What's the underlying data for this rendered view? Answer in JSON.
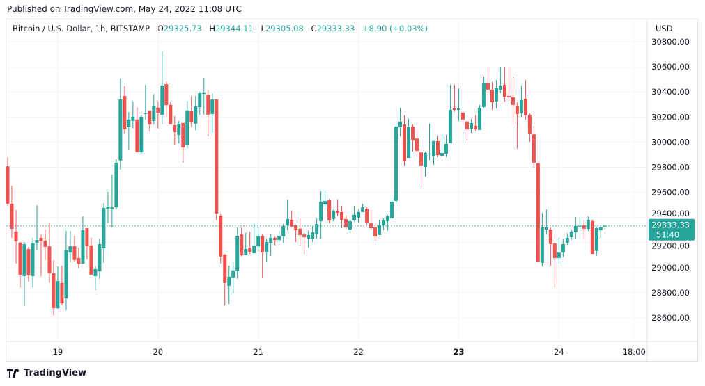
{
  "published": "Published on TradingView.com, May 24, 2022 11:08 UTC",
  "legend": {
    "symbol": "Bitcoin / U.S. Dollar, 1h, BITSTAMP",
    "o_label": "O",
    "o": "29325.73",
    "h_label": "H",
    "h": "29344.11",
    "l_label": "L",
    "l": "29305.08",
    "c_label": "C",
    "c": "29333.33",
    "change": "+8.90 (+0.03%)"
  },
  "currency": "USD",
  "logo_text": "TradingView",
  "colors": {
    "up": "#26a69a",
    "down": "#ef5350",
    "grid": "#f0f3fa",
    "axis_text": "#131722"
  },
  "chart_data": {
    "type": "candlestick",
    "interval": "1h",
    "ylim": [
      28520,
      30880
    ],
    "grid": true,
    "y_ticks": [
      "30800.00",
      "30600.00",
      "30400.00",
      "30200.00",
      "30000.00",
      "29800.00",
      "29600.00",
      "29400.00",
      "29200.00",
      "29000.00",
      "28800.00",
      "28600.00"
    ],
    "x_ticks": [
      {
        "label": "19",
        "bold": false
      },
      {
        "label": "20",
        "bold": false
      },
      {
        "label": "21",
        "bold": false
      },
      {
        "label": "22",
        "bold": false
      },
      {
        "label": "23",
        "bold": true
      },
      {
        "label": "24",
        "bold": false
      },
      {
        "label": "18:00",
        "bold": false
      }
    ],
    "last_price": {
      "value": "29333.33",
      "countdown": "51:40"
    },
    "ohlc": [
      [
        29808,
        29880,
        29493,
        29509
      ],
      [
        29509,
        29653,
        29238,
        29310
      ],
      [
        29288,
        29459,
        29033,
        29210
      ],
      [
        29199,
        29205,
        28844,
        28944
      ],
      [
        28933,
        29205,
        28695,
        29188
      ],
      [
        29149,
        29166,
        28889,
        28939
      ],
      [
        28933,
        29238,
        28844,
        29194
      ],
      [
        29199,
        29498,
        29138,
        29221
      ],
      [
        29238,
        29265,
        28933,
        29210
      ],
      [
        29216,
        29304,
        29061,
        29166
      ],
      [
        29171,
        29360,
        28878,
        28955
      ],
      [
        28955,
        29061,
        28622,
        28678
      ],
      [
        28678,
        29011,
        28672,
        28894
      ],
      [
        28878,
        29016,
        28700,
        28717
      ],
      [
        28755,
        29293,
        28661,
        29138
      ],
      [
        29121,
        29293,
        29044,
        29171
      ],
      [
        29171,
        29254,
        29050,
        29061
      ],
      [
        29077,
        29160,
        28994,
        29033
      ],
      [
        29033,
        29409,
        29033,
        29299
      ],
      [
        29315,
        29315,
        29066,
        29171
      ],
      [
        29177,
        29238,
        28944,
        28944
      ],
      [
        28933,
        29016,
        28822,
        28989
      ],
      [
        28972,
        29232,
        28911,
        29188
      ],
      [
        29155,
        29515,
        29039,
        29476
      ],
      [
        29470,
        29603,
        29354,
        29487
      ],
      [
        29465,
        29742,
        29321,
        29481
      ],
      [
        29481,
        29864,
        29470,
        29836
      ],
      [
        29853,
        30506,
        29781,
        30340
      ],
      [
        30368,
        30445,
        30069,
        30102
      ],
      [
        30119,
        30240,
        29936,
        30180
      ],
      [
        30169,
        30324,
        30110,
        30202
      ],
      [
        30180,
        30279,
        29919,
        29919
      ],
      [
        29919,
        30218,
        29910,
        30202
      ],
      [
        30224,
        30456,
        30180,
        30230
      ],
      [
        30252,
        30252,
        30085,
        30141
      ],
      [
        30169,
        30384,
        30141,
        30290
      ],
      [
        30274,
        30324,
        30108,
        30235
      ],
      [
        30218,
        30722,
        30141,
        30451
      ],
      [
        30462,
        30484,
        30202,
        30296
      ],
      [
        30296,
        30318,
        30141,
        30141
      ],
      [
        30135,
        30207,
        29980,
        30080
      ],
      [
        30058,
        30169,
        29990,
        30146
      ],
      [
        30152,
        30152,
        29836,
        29958
      ],
      [
        29980,
        30329,
        29950,
        30252
      ],
      [
        30246,
        30368,
        30124,
        30157
      ],
      [
        30146,
        30368,
        30095,
        30285
      ],
      [
        30279,
        30401,
        30218,
        30390
      ],
      [
        30384,
        30512,
        30218,
        30396
      ],
      [
        30379,
        30418,
        30047,
        30218
      ],
      [
        30224,
        30390,
        30075,
        30340
      ],
      [
        30340,
        30340,
        29377,
        29432
      ],
      [
        29415,
        29432,
        29033,
        29089
      ],
      [
        29105,
        29110,
        28700,
        28878
      ],
      [
        28856,
        29016,
        28711,
        28928
      ],
      [
        28922,
        29050,
        28794,
        28978
      ],
      [
        28972,
        29321,
        28911,
        29254
      ],
      [
        29265,
        29321,
        29090,
        29099
      ],
      [
        29099,
        29277,
        29099,
        29149
      ],
      [
        29160,
        29288,
        29110,
        29127
      ],
      [
        29116,
        29354,
        29116,
        29177
      ],
      [
        29171,
        29321,
        29127,
        29254
      ],
      [
        29254,
        29271,
        28916,
        29121
      ],
      [
        29121,
        29232,
        29050,
        29205
      ],
      [
        29199,
        29271,
        29094,
        29238
      ],
      [
        29238,
        29249,
        29177,
        29221
      ],
      [
        29221,
        29293,
        29199,
        29254
      ],
      [
        29249,
        29349,
        29199,
        29332
      ],
      [
        29338,
        29543,
        29300,
        29388
      ],
      [
        29382,
        29454,
        29321,
        29327
      ],
      [
        29338,
        29343,
        29205,
        29299
      ],
      [
        29310,
        29393,
        29177,
        29260
      ],
      [
        29265,
        29276,
        29110,
        29243
      ],
      [
        29232,
        29299,
        29160,
        29260
      ],
      [
        29232,
        29332,
        29205,
        29282
      ],
      [
        29265,
        29393,
        29232,
        29349
      ],
      [
        29371,
        29609,
        29232,
        29526
      ],
      [
        29504,
        29620,
        29465,
        29532
      ],
      [
        29537,
        29548,
        29354,
        29377
      ],
      [
        29388,
        29465,
        29370,
        29454
      ],
      [
        29454,
        29543,
        29410,
        29437
      ],
      [
        29443,
        29493,
        29315,
        29382
      ],
      [
        29388,
        29420,
        29310,
        29321
      ],
      [
        29304,
        29382,
        29277,
        29371
      ],
      [
        29377,
        29493,
        29366,
        29421
      ],
      [
        29399,
        29465,
        29360,
        29443
      ],
      [
        29443,
        29509,
        29443,
        29481
      ],
      [
        29470,
        29481,
        29340,
        29360
      ],
      [
        29354,
        29459,
        29300,
        29315
      ],
      [
        29321,
        29350,
        29210,
        29249
      ],
      [
        29260,
        29382,
        29260,
        29338
      ],
      [
        29338,
        29393,
        29300,
        29377
      ],
      [
        29371,
        29421,
        29296,
        29410
      ],
      [
        29393,
        29559,
        29393,
        29526
      ],
      [
        29532,
        30152,
        29505,
        30124
      ],
      [
        30119,
        30274,
        30047,
        30163
      ],
      [
        30141,
        30213,
        29814,
        29847
      ],
      [
        29875,
        30185,
        29875,
        30124
      ],
      [
        30124,
        30140,
        29925,
        30013
      ],
      [
        30030,
        30113,
        29886,
        29930
      ],
      [
        29919,
        29947,
        29642,
        29814
      ],
      [
        29803,
        29925,
        29725,
        29914
      ],
      [
        29903,
        30146,
        29858,
        29908
      ],
      [
        29886,
        30013,
        29819,
        30008
      ],
      [
        30008,
        30052,
        29880,
        29897
      ],
      [
        29892,
        30063,
        29880,
        29914
      ],
      [
        29908,
        30058,
        29880,
        29986
      ],
      [
        29991,
        30456,
        29991,
        30257
      ],
      [
        30268,
        30456,
        30240,
        30257
      ],
      [
        30257,
        30429,
        30169,
        30268
      ],
      [
        30235,
        30246,
        30135,
        30180
      ],
      [
        30163,
        30170,
        30013,
        30102
      ],
      [
        30108,
        30185,
        30075,
        30152
      ],
      [
        30130,
        30213,
        30090,
        30102
      ],
      [
        30097,
        30296,
        30097,
        30274
      ],
      [
        30279,
        30523,
        30268,
        30468
      ],
      [
        30468,
        30600,
        30390,
        30418
      ],
      [
        30418,
        30479,
        30257,
        30318
      ],
      [
        30324,
        30495,
        30268,
        30429
      ],
      [
        30418,
        30600,
        30395,
        30451
      ],
      [
        30456,
        30600,
        30324,
        30362
      ],
      [
        30368,
        30600,
        30324,
        30357
      ],
      [
        30357,
        30523,
        30135,
        30296
      ],
      [
        30290,
        30318,
        29947,
        30224
      ],
      [
        30229,
        30451,
        30200,
        30335
      ],
      [
        30346,
        30495,
        30180,
        30213
      ],
      [
        30218,
        30229,
        30002,
        30069
      ],
      [
        30063,
        30130,
        29797,
        29836
      ],
      [
        29831,
        29836,
        29049,
        29049
      ],
      [
        29038,
        29437,
        29011,
        29321
      ],
      [
        29304,
        29465,
        29266,
        29321
      ],
      [
        29304,
        29320,
        29016,
        29188
      ],
      [
        29193,
        29200,
        28844,
        29077
      ],
      [
        29077,
        29238,
        29033,
        29121
      ],
      [
        29121,
        29227,
        29083,
        29188
      ],
      [
        29199,
        29277,
        29180,
        29238
      ],
      [
        29243,
        29304,
        29221,
        29288
      ],
      [
        29282,
        29404,
        29227,
        29332
      ],
      [
        29327,
        29404,
        29310,
        29332
      ],
      [
        29338,
        29382,
        29227,
        29310
      ],
      [
        29310,
        29410,
        29293,
        29382
      ],
      [
        29371,
        29382,
        29110,
        29110
      ],
      [
        29133,
        29327,
        29094,
        29315
      ],
      [
        29299,
        29327,
        29238,
        29321
      ],
      [
        29325.73,
        29344.11,
        29305.08,
        29333.33
      ]
    ]
  }
}
